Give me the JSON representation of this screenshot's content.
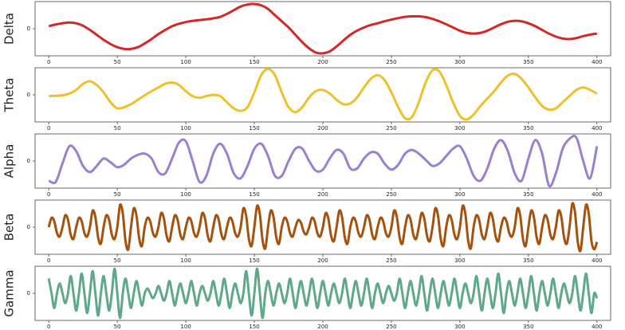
{
  "chart_data": [
    {
      "type": "line",
      "ylabel": "Delta",
      "color": "#d62728",
      "xlim": [
        -10,
        410
      ],
      "ylim": [
        -1.1,
        1.1
      ],
      "xticks": [
        0,
        50,
        100,
        150,
        200,
        250,
        300,
        350,
        400
      ],
      "yticks": [
        0
      ],
      "x": [
        0,
        5,
        10,
        15,
        20,
        25,
        30,
        35,
        40,
        45,
        50,
        55,
        60,
        65,
        70,
        75,
        80,
        85,
        90,
        95,
        100,
        105,
        110,
        115,
        120,
        125,
        130,
        135,
        140,
        145,
        150,
        155,
        160,
        165,
        170,
        175,
        180,
        185,
        190,
        195,
        200,
        205,
        210,
        215,
        220,
        225,
        230,
        235,
        240,
        245,
        250,
        255,
        260,
        265,
        270,
        275,
        280,
        285,
        290,
        295,
        300,
        305,
        310,
        315,
        320,
        325,
        330,
        335,
        340,
        345,
        350,
        355,
        360,
        365,
        370,
        375,
        380,
        385,
        390,
        395,
        400
      ],
      "values": [
        0.1,
        0.17,
        0.22,
        0.25,
        0.22,
        0.12,
        -0.05,
        -0.25,
        -0.45,
        -0.62,
        -0.75,
        -0.82,
        -0.82,
        -0.75,
        -0.6,
        -0.42,
        -0.22,
        -0.05,
        0.1,
        0.2,
        0.27,
        0.32,
        0.35,
        0.38,
        0.42,
        0.48,
        0.6,
        0.75,
        0.9,
        0.98,
        1.0,
        0.95,
        0.8,
        0.55,
        0.3,
        0.05,
        -0.25,
        -0.55,
        -0.8,
        -0.97,
        -1.0,
        -0.92,
        -0.72,
        -0.48,
        -0.25,
        -0.08,
        0.05,
        0.15,
        0.22,
        0.3,
        0.37,
        0.43,
        0.48,
        0.5,
        0.5,
        0.47,
        0.4,
        0.3,
        0.18,
        0.05,
        -0.08,
        -0.17,
        -0.2,
        -0.17,
        -0.08,
        0.05,
        0.18,
        0.28,
        0.32,
        0.3,
        0.22,
        0.1,
        -0.05,
        -0.2,
        -0.32,
        -0.4,
        -0.42,
        -0.38,
        -0.3,
        -0.24,
        -0.2
      ]
    },
    {
      "type": "line",
      "ylabel": "Theta",
      "color": "#f0c02a",
      "xlim": [
        -10,
        410
      ],
      "ylim": [
        -1.1,
        1.1
      ],
      "xticks": [
        0,
        50,
        100,
        150,
        200,
        250,
        300,
        350,
        400
      ],
      "yticks": [
        0
      ],
      "x": [
        0,
        5,
        10,
        15,
        20,
        25,
        30,
        35,
        40,
        45,
        50,
        55,
        60,
        65,
        70,
        75,
        80,
        85,
        90,
        95,
        100,
        105,
        110,
        115,
        120,
        125,
        130,
        135,
        140,
        145,
        150,
        155,
        160,
        165,
        170,
        175,
        180,
        185,
        190,
        195,
        200,
        205,
        210,
        215,
        220,
        225,
        230,
        235,
        240,
        245,
        250,
        255,
        260,
        265,
        270,
        275,
        280,
        285,
        290,
        295,
        300,
        305,
        310,
        315,
        320,
        325,
        330,
        335,
        340,
        345,
        350,
        355,
        360,
        365,
        370,
        375,
        380,
        385,
        390,
        395,
        400
      ],
      "values": [
        -0.05,
        -0.04,
        -0.02,
        0.05,
        0.2,
        0.45,
        0.55,
        0.4,
        0.1,
        -0.3,
        -0.55,
        -0.5,
        -0.38,
        -0.2,
        -0.02,
        0.15,
        0.3,
        0.45,
        0.5,
        0.4,
        0.15,
        -0.05,
        -0.12,
        -0.05,
        0.0,
        -0.05,
        -0.3,
        -0.55,
        -0.65,
        -0.5,
        0.1,
        0.8,
        1.05,
        0.8,
        0.1,
        -0.5,
        -0.7,
        -0.5,
        -0.1,
        0.15,
        0.2,
        0.05,
        -0.2,
        -0.38,
        -0.35,
        -0.1,
        0.3,
        0.65,
        0.8,
        0.6,
        0.1,
        -0.5,
        -0.95,
        -0.9,
        -0.3,
        0.5,
        1.0,
        0.95,
        0.4,
        -0.3,
        -0.85,
        -1.0,
        -0.8,
        -0.45,
        -0.15,
        0.15,
        0.5,
        0.78,
        0.85,
        0.65,
        0.3,
        -0.1,
        -0.45,
        -0.6,
        -0.55,
        -0.3,
        -0.05,
        0.2,
        0.3,
        0.2,
        0.05
      ]
    },
    {
      "type": "line",
      "ylabel": "Alpha",
      "color": "#9b80d0",
      "xlim": [
        -10,
        410
      ],
      "ylim": [
        -1.1,
        1.1
      ],
      "xticks": [
        0,
        50,
        100,
        150,
        200,
        250,
        300,
        350,
        400
      ],
      "yticks": [
        0
      ],
      "x": [
        0,
        5,
        10,
        15,
        20,
        25,
        30,
        35,
        40,
        45,
        50,
        55,
        60,
        65,
        70,
        75,
        80,
        85,
        90,
        95,
        100,
        105,
        110,
        115,
        120,
        125,
        130,
        135,
        140,
        145,
        150,
        155,
        160,
        165,
        170,
        175,
        180,
        185,
        190,
        195,
        200,
        205,
        210,
        215,
        220,
        225,
        230,
        235,
        240,
        245,
        250,
        255,
        260,
        265,
        270,
        275,
        280,
        285,
        290,
        295,
        300,
        305,
        310,
        315,
        320,
        325,
        330,
        335,
        340,
        345,
        350,
        355,
        360,
        365,
        370,
        375,
        380,
        385,
        390,
        395,
        400
      ],
      "values": [
        -0.8,
        -0.85,
        -0.1,
        0.6,
        0.4,
        -0.2,
        -0.45,
        -0.2,
        0.1,
        -0.05,
        -0.25,
        -0.15,
        0.1,
        0.25,
        0.3,
        0.1,
        -0.45,
        -0.5,
        0.1,
        0.75,
        0.8,
        0.0,
        -0.85,
        -0.6,
        0.3,
        0.7,
        0.3,
        -0.5,
        -0.7,
        -0.2,
        0.5,
        0.7,
        0.2,
        -0.6,
        -0.6,
        0.0,
        0.5,
        0.5,
        0.0,
        -0.4,
        -0.35,
        0.1,
        0.45,
        0.3,
        -0.3,
        -0.3,
        0.1,
        0.35,
        0.3,
        -0.1,
        -0.35,
        -0.15,
        0.3,
        0.45,
        0.3,
        0.05,
        -0.2,
        -0.1,
        0.2,
        0.5,
        0.6,
        0.1,
        -0.6,
        -0.8,
        -0.3,
        0.5,
        0.85,
        0.4,
        -0.5,
        -0.8,
        0.1,
        0.85,
        0.3,
        -1.0,
        -0.5,
        0.5,
        0.9,
        0.95,
        0.0,
        -0.7,
        0.6
      ]
    },
    {
      "type": "line",
      "ylabel": "Beta",
      "color": "#a5520e",
      "xlim": [
        -10,
        410
      ],
      "ylim": [
        -1.1,
        1.1
      ],
      "xticks": [
        0,
        50,
        100,
        150,
        200,
        250,
        300,
        350,
        400
      ],
      "yticks": [
        0
      ],
      "x": [
        0,
        2,
        4,
        6,
        8,
        10,
        12,
        14,
        16,
        18,
        20,
        22,
        24,
        26,
        28,
        30,
        32,
        34,
        36,
        38,
        40,
        42,
        44,
        46,
        48,
        50,
        52,
        54,
        56,
        58,
        60,
        62,
        64,
        66,
        68,
        70,
        72,
        74,
        76,
        78,
        80,
        82,
        84,
        86,
        88,
        90,
        92,
        94,
        96,
        98,
        100,
        102,
        104,
        106,
        108,
        110,
        112,
        114,
        116,
        118,
        120,
        122,
        124,
        126,
        128,
        130,
        132,
        134,
        136,
        138,
        140,
        142,
        144,
        146,
        148,
        150,
        152,
        154,
        156,
        158,
        160,
        162,
        164,
        166,
        168,
        170,
        172,
        174,
        176,
        178,
        180,
        182,
        184,
        186,
        188,
        190,
        192,
        194,
        196,
        198,
        200,
        202,
        204,
        206,
        208,
        210,
        212,
        214,
        216,
        218,
        220,
        222,
        224,
        226,
        228,
        230,
        232,
        234,
        236,
        238,
        240,
        242,
        244,
        246,
        248,
        250,
        252,
        254,
        256,
        258,
        260,
        262,
        264,
        266,
        268,
        270,
        272,
        274,
        276,
        278,
        280,
        282,
        284,
        286,
        288,
        290,
        292,
        294,
        296,
        298,
        300,
        302,
        304,
        306,
        308,
        310,
        312,
        314,
        316,
        318,
        320,
        322,
        324,
        326,
        328,
        330,
        332,
        334,
        336,
        338,
        340,
        342,
        344,
        346,
        348,
        350,
        352,
        354,
        356,
        358,
        360,
        362,
        364,
        366,
        368,
        370,
        372,
        374,
        376,
        378,
        380,
        382,
        384,
        386,
        388,
        390,
        392,
        394,
        396,
        398,
        400
      ],
      "values": [
        0,
        0.38,
        0.24,
        -0.24,
        -0.38,
        0,
        0.48,
        0.3,
        -0.3,
        -0.48,
        0,
        0.38,
        0.24,
        -0.24,
        -0.38,
        0,
        0.67,
        0.41,
        -0.41,
        -0.67,
        0,
        0.48,
        0.3,
        -0.3,
        -0.48,
        0,
        0.9,
        0.56,
        -0.56,
        -0.9,
        0,
        0.76,
        0.47,
        -0.47,
        -0.76,
        0,
        0.38,
        0.24,
        -0.24,
        -0.38,
        0,
        0.57,
        0.35,
        -0.35,
        -0.57,
        0,
        0.48,
        0.3,
        -0.3,
        -0.48,
        0,
        0.38,
        0.24,
        -0.24,
        -0.38,
        0,
        0.57,
        0.35,
        -0.35,
        -0.57,
        0,
        0.48,
        0.3,
        -0.3,
        -0.48,
        0,
        0.38,
        0.24,
        -0.24,
        -0.38,
        0,
        0.76,
        0.47,
        -0.47,
        -0.76,
        0,
        0.86,
        0.53,
        -0.53,
        -0.86,
        0,
        0.67,
        0.41,
        -0.41,
        -0.67,
        0,
        0.38,
        0.24,
        -0.24,
        -0.38,
        0,
        0.29,
        0.18,
        -0.18,
        -0.29,
        0,
        0.38,
        0.24,
        -0.24,
        -0.38,
        0,
        0.57,
        0.35,
        -0.35,
        -0.57,
        0,
        0.67,
        0.41,
        -0.41,
        -0.67,
        0,
        0.38,
        0.24,
        -0.24,
        -0.38,
        0,
        0.48,
        0.3,
        -0.3,
        -0.48,
        0,
        0.38,
        0.24,
        -0.24,
        -0.38,
        0,
        0.67,
        0.41,
        -0.41,
        -0.67,
        0,
        0.48,
        0.3,
        -0.3,
        -0.48,
        0,
        0.57,
        0.35,
        -0.35,
        -0.57,
        0,
        0.76,
        0.47,
        -0.47,
        -0.76,
        0,
        0.48,
        0.3,
        -0.3,
        -0.48,
        0,
        0.86,
        0.53,
        -0.53,
        -0.86,
        0,
        0.48,
        0.3,
        -0.3,
        -0.48,
        0,
        0.57,
        0.35,
        -0.35,
        -0.57,
        0,
        0.38,
        0.24,
        -0.24,
        -0.38,
        0,
        0.76,
        0.47,
        -0.47,
        -0.76,
        0,
        0.67,
        0.41,
        -0.41,
        -0.67,
        0,
        0.48,
        0.3,
        -0.3,
        -0.48,
        0,
        0.67,
        0.41,
        -0.41,
        -0.67,
        0,
        0.95,
        0.59,
        -0.59,
        -0.95,
        0,
        0.9,
        0.56,
        -0.56,
        -0.9,
        -0.6
      ]
    },
    {
      "type": "line",
      "ylabel": "Gamma",
      "color": "#5fa98a",
      "xlim": [
        -10,
        410
      ],
      "ylim": [
        -1.1,
        1.1
      ],
      "xticks": [
        0,
        50,
        100,
        150,
        200,
        250,
        300,
        350,
        400
      ],
      "yticks": [
        0
      ],
      "x": [
        0,
        2,
        4,
        6,
        8,
        10,
        12,
        14,
        16,
        18,
        20,
        22,
        24,
        26,
        28,
        30,
        32,
        34,
        36,
        38,
        40,
        42,
        44,
        46,
        48,
        50,
        52,
        54,
        56,
        58,
        60,
        62,
        64,
        66,
        68,
        70,
        72,
        74,
        76,
        78,
        80,
        82,
        84,
        86,
        88,
        90,
        92,
        94,
        96,
        98,
        100,
        102,
        104,
        106,
        108,
        110,
        112,
        114,
        116,
        118,
        120,
        122,
        124,
        126,
        128,
        130,
        132,
        134,
        136,
        138,
        140,
        142,
        144,
        146,
        148,
        150,
        152,
        154,
        156,
        158,
        160,
        162,
        164,
        166,
        168,
        170,
        172,
        174,
        176,
        178,
        180,
        182,
        184,
        186,
        188,
        190,
        192,
        194,
        196,
        198,
        200,
        202,
        204,
        206,
        208,
        210,
        212,
        214,
        216,
        218,
        220,
        222,
        224,
        226,
        228,
        230,
        232,
        234,
        236,
        238,
        240,
        242,
        244,
        246,
        248,
        250,
        252,
        254,
        256,
        258,
        260,
        262,
        264,
        266,
        268,
        270,
        272,
        274,
        276,
        278,
        280,
        282,
        284,
        286,
        288,
        290,
        292,
        294,
        296,
        298,
        300,
        302,
        304,
        306,
        308,
        310,
        312,
        314,
        316,
        318,
        320,
        322,
        324,
        326,
        328,
        330,
        332,
        334,
        336,
        338,
        340,
        342,
        344,
        346,
        348,
        350,
        352,
        354,
        356,
        358,
        360,
        362,
        364,
        366,
        368,
        370,
        372,
        374,
        376,
        378,
        380,
        382,
        384,
        386,
        388,
        390,
        392,
        394,
        396,
        398,
        400
      ],
      "values": [
        0.6,
        0,
        -0.6,
        0,
        0.4,
        0,
        -0.4,
        0,
        0.7,
        0,
        -0.7,
        0,
        0.8,
        0,
        -0.8,
        0,
        0.9,
        0,
        -0.9,
        0,
        0.7,
        0,
        -0.7,
        0,
        1.0,
        0,
        -1.0,
        0,
        0.6,
        0,
        -0.6,
        0,
        0.5,
        0,
        -0.5,
        0,
        0.2,
        0,
        -0.2,
        0,
        0.3,
        0,
        -0.3,
        0,
        0.5,
        0,
        -0.5,
        0,
        0.4,
        0,
        -0.4,
        0,
        0.5,
        0,
        -0.5,
        0,
        0.3,
        0,
        -0.3,
        0,
        0.5,
        0,
        -0.5,
        0,
        0.6,
        0,
        -0.6,
        0,
        0.4,
        0,
        -0.4,
        0,
        0.9,
        0,
        -0.9,
        0,
        1.0,
        0,
        -1.0,
        0,
        0.5,
        0,
        -0.5,
        0,
        0.4,
        0,
        -0.4,
        0,
        0.6,
        0,
        -0.6,
        0,
        0.5,
        0,
        -0.5,
        0,
        0.6,
        0,
        -0.6,
        0,
        0.5,
        0,
        -0.5,
        0,
        0.4,
        0,
        -0.4,
        0,
        0.6,
        0,
        -0.6,
        0,
        0.5,
        0,
        -0.5,
        0,
        0.6,
        0,
        -0.6,
        0,
        0.4,
        0,
        -0.4,
        0,
        0.3,
        0,
        -0.3,
        0,
        0.6,
        0,
        -0.6,
        0,
        0.5,
        0,
        -0.5,
        0,
        0.7,
        0,
        -0.7,
        0,
        0.6,
        0,
        -0.6,
        0,
        0.5,
        0,
        -0.5,
        0,
        0.6,
        0,
        -0.6,
        0,
        0.4,
        0,
        -0.4,
        0,
        0.7,
        0,
        -0.7,
        0,
        0.6,
        0,
        -0.6,
        0,
        0.8,
        0,
        -0.8,
        0,
        0.5,
        0,
        -0.5,
        0,
        0.6,
        0,
        -0.6,
        0,
        0.7,
        0,
        -0.7,
        0,
        0.5,
        0,
        -0.5,
        0,
        0.6,
        0,
        -0.6,
        0,
        0.4,
        0,
        -0.4,
        0,
        0.7,
        0,
        -0.7,
        0,
        0.8,
        0,
        -0.8,
        0,
        -0.2
      ]
    }
  ]
}
